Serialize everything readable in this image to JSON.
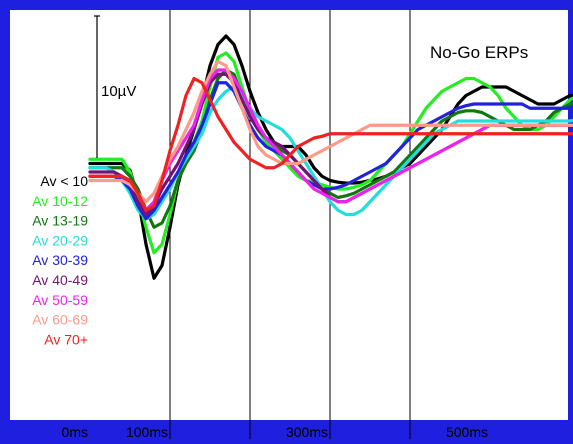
{
  "chart_data": {
    "type": "line",
    "title": "No-Go ERPs",
    "scale_bar_label": "10µV",
    "xlabel": "",
    "ylabel": "",
    "x_ticks": [
      "0ms",
      "100ms",
      "300ms",
      "500ms"
    ],
    "grid": "vertical lines at 100, 200, 300, 400 ms",
    "legend_position": "left",
    "xlim": [
      0,
      650
    ],
    "ylim": [
      -25,
      20
    ],
    "y_inverted": true,
    "x": [
      0,
      10,
      20,
      30,
      40,
      50,
      60,
      70,
      80,
      90,
      100,
      110,
      120,
      130,
      140,
      150,
      160,
      170,
      180,
      190,
      200,
      210,
      220,
      230,
      240,
      250,
      260,
      270,
      280,
      290,
      300,
      310,
      320,
      330,
      340,
      350,
      360,
      370,
      380,
      390,
      400,
      410,
      420,
      430,
      440,
      450,
      460,
      470,
      480,
      490,
      500,
      510,
      520,
      530,
      540,
      550,
      560,
      570,
      580,
      590,
      600,
      610,
      620,
      630,
      640
    ],
    "series": [
      {
        "name": "Av < 10",
        "color": "#000000",
        "values": [
          -1.0,
          -1.0,
          -1.0,
          -1.0,
          -1.0,
          -1.8,
          -5.0,
          -10.5,
          -14.5,
          -13.0,
          -8.5,
          -3.5,
          0.0,
          3.0,
          6.5,
          10.5,
          13.0,
          14.0,
          13.0,
          10.5,
          7.5,
          5.0,
          3.0,
          1.5,
          1.0,
          1.0,
          1.0,
          0.0,
          -1.5,
          -2.5,
          -3.0,
          -3.2,
          -3.3,
          -3.3,
          -3.2,
          -3.0,
          -2.8,
          -2.5,
          -2.0,
          -1.5,
          -1.0,
          0.0,
          1.0,
          2.0,
          3.0,
          4.5,
          6.0,
          7.0,
          7.5,
          8.0,
          8.0,
          8.0,
          8.0,
          7.5,
          7.0,
          6.5,
          6.0,
          6.0,
          6.0,
          6.5,
          7.0,
          7.0,
          7.0,
          7.0,
          7.0
        ]
      },
      {
        "name": "Av 10-12",
        "color": "#22ee22",
        "values": [
          -0.5,
          -0.5,
          -0.5,
          -0.5,
          -0.5,
          -2.0,
          -5.0,
          -8.5,
          -11.5,
          -10.5,
          -7.0,
          -3.0,
          -0.5,
          1.5,
          4.0,
          8.0,
          11.5,
          12.0,
          11.0,
          8.0,
          5.0,
          3.0,
          1.5,
          0.5,
          -0.5,
          -1.5,
          -2.5,
          -3.0,
          -3.2,
          -3.5,
          -3.8,
          -4.0,
          -4.0,
          -3.8,
          -3.5,
          -3.0,
          -2.0,
          -1.0,
          0.0,
          1.0,
          2.5,
          4.0,
          5.5,
          6.5,
          7.5,
          8.0,
          8.5,
          9.0,
          9.0,
          8.5,
          8.0,
          7.0,
          5.5,
          4.5,
          3.5,
          3.0,
          3.0,
          3.5,
          4.5,
          5.5,
          6.5,
          7.0,
          7.5,
          7.5,
          7.5
        ]
      },
      {
        "name": "Av 13-19",
        "color": "#117711",
        "values": [
          -1.5,
          -1.5,
          -1.5,
          -1.5,
          -1.5,
          -2.5,
          -4.0,
          -6.5,
          -8.5,
          -8.0,
          -6.0,
          -3.0,
          -1.0,
          0.5,
          3.0,
          6.5,
          9.0,
          10.0,
          9.5,
          7.0,
          4.5,
          3.0,
          2.0,
          1.5,
          0.5,
          0.0,
          -1.0,
          -2.0,
          -3.0,
          -4.0,
          -4.5,
          -5.0,
          -4.8,
          -4.5,
          -4.0,
          -3.5,
          -3.0,
          -2.5,
          -2.0,
          -1.0,
          0.0,
          1.0,
          2.0,
          3.0,
          4.0,
          4.5,
          5.0,
          5.2,
          5.2,
          5.0,
          4.5,
          4.0,
          3.5,
          3.0,
          3.0,
          3.0,
          3.5,
          4.0,
          5.0,
          5.5,
          6.0,
          6.0,
          6.0,
          6.0,
          6.0
        ]
      },
      {
        "name": "Av 20-29",
        "color": "#22dddd",
        "values": [
          -1.5,
          -1.5,
          -1.5,
          -2.0,
          -3.0,
          -4.5,
          -6.5,
          -7.5,
          -7.0,
          -5.5,
          -4.0,
          -2.0,
          -0.5,
          1.0,
          2.5,
          5.0,
          6.5,
          7.5,
          8.0,
          7.0,
          5.5,
          4.5,
          4.0,
          3.5,
          3.0,
          2.0,
          0.5,
          -1.0,
          -2.5,
          -4.0,
          -5.5,
          -6.5,
          -7.0,
          -7.0,
          -6.5,
          -5.5,
          -4.5,
          -3.5,
          -2.5,
          -1.5,
          -0.5,
          0.5,
          1.5,
          2.5,
          3.0,
          3.5,
          4.0,
          4.0,
          4.0,
          4.0,
          4.0,
          4.0,
          4.0,
          4.0,
          4.0,
          4.0,
          4.0,
          4.0,
          4.0,
          4.0,
          4.0,
          4.2,
          4.5,
          4.5,
          4.5
        ]
      },
      {
        "name": "Av 30-39",
        "color": "#2222dd",
        "values": [
          -2.5,
          -2.5,
          -2.5,
          -2.5,
          -3.0,
          -4.0,
          -6.0,
          -7.5,
          -6.5,
          -5.0,
          -3.5,
          -2.0,
          0.0,
          1.5,
          3.5,
          6.0,
          8.5,
          8.5,
          7.5,
          5.5,
          3.5,
          2.0,
          1.0,
          0.5,
          0.0,
          -1.0,
          -2.0,
          -3.0,
          -3.5,
          -4.0,
          -4.0,
          -3.8,
          -3.5,
          -3.0,
          -2.5,
          -2.0,
          -1.5,
          -1.0,
          0.0,
          1.0,
          2.0,
          3.0,
          3.5,
          4.0,
          4.5,
          5.0,
          5.5,
          5.8,
          6.0,
          6.0,
          6.0,
          6.0,
          6.0,
          6.0,
          6.0,
          5.5,
          5.5,
          5.5,
          5.5,
          5.5,
          5.5,
          5.5,
          5.5,
          5.5,
          5.5
        ]
      },
      {
        "name": "Av 40-49",
        "color": "#771177",
        "values": [
          -2.0,
          -2.0,
          -2.0,
          -2.0,
          -2.5,
          -3.5,
          -5.5,
          -7.0,
          -6.0,
          -4.0,
          -2.5,
          -1.0,
          1.0,
          3.0,
          6.0,
          8.5,
          9.5,
          9.5,
          8.5,
          6.5,
          4.5,
          3.0,
          2.0,
          1.5,
          1.0,
          0.0,
          -1.0,
          -2.0,
          -3.0,
          -4.0,
          -5.0,
          -5.5,
          -5.5,
          -5.0,
          -4.5,
          -4.0,
          -3.5,
          -3.0,
          -2.5,
          -2.0,
          -1.5,
          -1.0,
          -0.5,
          0.0,
          0.5,
          1.0,
          1.5,
          2.0,
          2.5,
          3.0,
          3.5,
          3.5,
          3.5,
          3.5,
          3.5,
          3.5,
          3.5,
          3.5,
          3.5,
          3.5,
          3.5,
          3.5,
          3.5,
          3.5,
          3.5
        ]
      },
      {
        "name": "Av 50-59",
        "color": "#ee22ee",
        "values": [
          -2.5,
          -2.5,
          -2.5,
          -2.5,
          -2.5,
          -3.0,
          -4.5,
          -6.5,
          -5.5,
          -3.0,
          -1.0,
          0.5,
          2.0,
          3.5,
          6.5,
          9.0,
          10.0,
          10.0,
          9.0,
          7.5,
          5.5,
          3.5,
          2.0,
          1.0,
          0.0,
          -1.0,
          -2.0,
          -3.0,
          -4.0,
          -4.5,
          -5.0,
          -5.5,
          -5.5,
          -5.0,
          -4.5,
          -4.0,
          -3.5,
          -3.0,
          -2.5,
          -2.0,
          -1.5,
          -1.0,
          -0.5,
          0.0,
          0.5,
          1.0,
          1.5,
          2.0,
          2.5,
          3.0,
          3.5,
          3.5,
          3.5,
          3.5,
          3.5,
          3.5,
          3.5,
          3.5,
          3.5,
          3.5,
          3.5,
          3.5,
          3.5,
          3.5,
          3.5
        ]
      },
      {
        "name": "Av 60-69",
        "color": "#ff9988",
        "values": [
          -3.0,
          -3.0,
          -3.0,
          -3.0,
          -3.0,
          -3.5,
          -4.5,
          -5.5,
          -4.5,
          -2.5,
          -0.5,
          1.0,
          3.0,
          5.0,
          7.5,
          9.5,
          11.0,
          10.5,
          8.0,
          5.5,
          3.0,
          1.0,
          0.0,
          -0.5,
          -1.0,
          -1.0,
          -1.0,
          -0.5,
          0.0,
          0.5,
          1.0,
          1.5,
          2.0,
          2.5,
          3.0,
          3.5,
          3.5,
          3.5,
          3.5,
          3.5,
          3.5,
          3.5,
          3.5,
          3.5,
          3.5,
          3.5,
          3.5,
          3.5,
          3.5,
          3.5,
          3.5,
          3.5,
          3.5,
          3.5,
          3.5,
          3.5,
          3.5,
          3.5,
          3.5,
          3.5,
          3.5,
          3.5,
          3.5,
          3.5,
          3.5
        ]
      },
      {
        "name": "Av 70+",
        "color": "#ee2222",
        "values": [
          -2.5,
          -2.5,
          -2.5,
          -2.5,
          -2.5,
          -3.0,
          -4.5,
          -6.5,
          -6.0,
          -3.0,
          0.5,
          3.5,
          7.0,
          9.0,
          8.5,
          6.5,
          4.5,
          3.0,
          1.5,
          0.5,
          -0.5,
          -1.0,
          -1.5,
          -1.5,
          -1.0,
          0.0,
          1.0,
          1.5,
          2.0,
          2.2,
          2.5,
          2.5,
          2.5,
          2.5,
          2.5,
          2.5,
          2.5,
          2.5,
          2.5,
          2.5,
          2.5,
          2.5,
          2.5,
          2.5,
          2.5,
          2.5,
          2.5,
          2.5,
          2.5,
          2.5,
          2.5,
          2.5,
          2.5,
          2.5,
          2.5,
          2.5,
          2.5,
          2.5,
          2.5,
          2.5,
          2.5,
          2.5,
          2.5,
          2.5,
          2.5
        ]
      }
    ]
  }
}
